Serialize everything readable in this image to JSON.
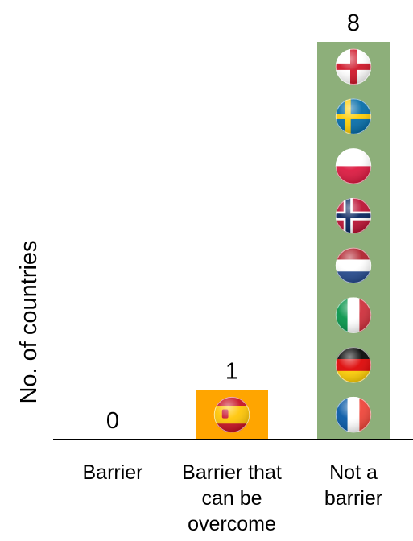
{
  "chart_data": {
    "type": "bar",
    "title": "",
    "xlabel": "",
    "ylabel": "No. of countries",
    "ylim": [
      0,
      8
    ],
    "grid": false,
    "categories": [
      [
        "Barrier"
      ],
      [
        "Barrier that",
        "can be",
        "overcome"
      ],
      [
        "Not a",
        "barrier"
      ]
    ],
    "values": [
      0,
      1,
      8
    ],
    "data_labels": [
      "0",
      "1",
      "8"
    ],
    "bar_colors": [
      "#FFA500",
      "#FFA500",
      "#8DAF7A"
    ],
    "flags": [
      [],
      [
        "spain-flag-icon"
      ],
      [
        "england-flag-icon",
        "sweden-flag-icon",
        "poland-flag-icon",
        "norway-flag-icon",
        "netherlands-flag-icon",
        "italy-flag-icon",
        "germany-flag-icon",
        "france-flag-icon"
      ]
    ]
  }
}
